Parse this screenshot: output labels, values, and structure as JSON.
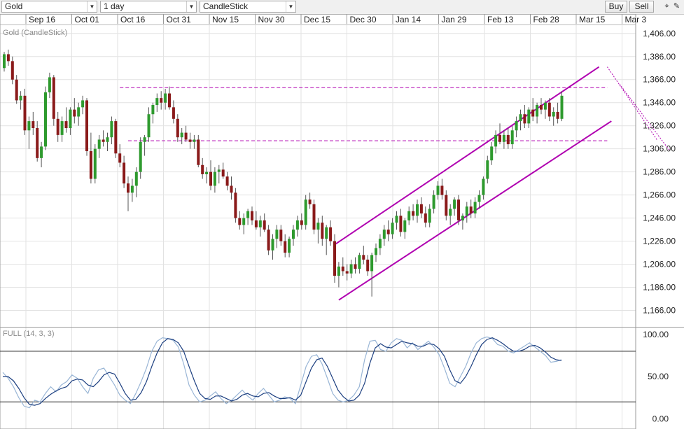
{
  "toolbar": {
    "symbol": "Gold",
    "interval": "1 day",
    "chart_type": "CandleStick",
    "buy_label": "Buy",
    "sell_label": "Sell"
  },
  "icons": [
    "crosshair-icon",
    "pencil-icon"
  ],
  "colors": {
    "bull": "#2e9a2e",
    "bear": "#8a1a1a",
    "channel": "#b000b0",
    "stoch_k": "#9ab6d6",
    "stoch_d": "#1c3f80",
    "grid": "#e2e2e2"
  },
  "chart_data": [
    {
      "type": "candlestick",
      "title": "Gold (CandleStick)",
      "x_tick_labels": [
        "Sep 16",
        "Oct 01",
        "Oct 16",
        "Oct 31",
        "Nov 15",
        "Nov 30",
        "Dec 15",
        "Dec 30",
        "Jan 14",
        "Jan 29",
        "Feb 13",
        "Feb 28",
        "Mar 15",
        "Mar 3"
      ],
      "y_tick_labels": [
        "1,406.00",
        "1,386.00",
        "1,366.00",
        "1,346.00",
        "1,326.00",
        "1,306.00",
        "1,286.00",
        "1,266.00",
        "1,246.00",
        "1,226.00",
        "1,206.00",
        "1,186.00",
        "1,166.00"
      ],
      "ylim": [
        1156,
        1418
      ],
      "horizontal_levels": [
        1359,
        1313
      ],
      "channel_lines": [
        {
          "style": "solid",
          "from": [
            32,
            1223
          ],
          "to": [
            144,
            1377
          ]
        },
        {
          "style": "solid",
          "from": [
            33,
            1175
          ],
          "to": [
            147,
            1330
          ]
        },
        {
          "style": "dotted",
          "from": [
            110,
            1314
          ],
          "to": [
            146,
            1377
          ]
        },
        {
          "style": "dotted",
          "from": [
            113,
            1305
          ],
          "to": [
            149,
            1362
          ]
        }
      ],
      "candles": [
        [
          0,
          1376,
          1390,
          1373,
          1388
        ],
        [
          1,
          1388,
          1392,
          1378,
          1382
        ],
        [
          2,
          1382,
          1386,
          1362,
          1366
        ],
        [
          3,
          1366,
          1370,
          1345,
          1348
        ],
        [
          4,
          1348,
          1356,
          1340,
          1352
        ],
        [
          5,
          1352,
          1358,
          1318,
          1322
        ],
        [
          6,
          1322,
          1334,
          1306,
          1330
        ],
        [
          7,
          1330,
          1338,
          1318,
          1324
        ],
        [
          8,
          1324,
          1330,
          1295,
          1298
        ],
        [
          9,
          1298,
          1312,
          1290,
          1308
        ],
        [
          10,
          1308,
          1360,
          1305,
          1355
        ],
        [
          11,
          1355,
          1372,
          1350,
          1368
        ],
        [
          12,
          1368,
          1370,
          1326,
          1332
        ],
        [
          13,
          1332,
          1338,
          1312,
          1318
        ],
        [
          14,
          1318,
          1334,
          1312,
          1330
        ],
        [
          15,
          1330,
          1342,
          1320,
          1324
        ],
        [
          16,
          1324,
          1342,
          1318,
          1340
        ],
        [
          17,
          1340,
          1350,
          1328,
          1334
        ],
        [
          18,
          1334,
          1346,
          1326,
          1342
        ],
        [
          19,
          1342,
          1352,
          1336,
          1348
        ],
        [
          20,
          1348,
          1350,
          1300,
          1304
        ],
        [
          21,
          1304,
          1320,
          1276,
          1280
        ],
        [
          22,
          1280,
          1310,
          1276,
          1306
        ],
        [
          23,
          1306,
          1318,
          1298,
          1314
        ],
        [
          24,
          1314,
          1322,
          1308,
          1312
        ],
        [
          25,
          1312,
          1320,
          1304,
          1316
        ],
        [
          26,
          1316,
          1334,
          1310,
          1330
        ],
        [
          27,
          1330,
          1332,
          1298,
          1302
        ],
        [
          28,
          1302,
          1310,
          1290,
          1294
        ],
        [
          29,
          1294,
          1300,
          1272,
          1276
        ],
        [
          30,
          1276,
          1282,
          1252,
          1268
        ],
        [
          31,
          1268,
          1280,
          1260,
          1274
        ],
        [
          32,
          1274,
          1290,
          1264,
          1286
        ],
        [
          33,
          1286,
          1316,
          1280,
          1312
        ],
        [
          34,
          1312,
          1318,
          1300,
          1316
        ],
        [
          35,
          1316,
          1342,
          1312,
          1336
        ],
        [
          36,
          1336,
          1346,
          1328,
          1344
        ],
        [
          37,
          1344,
          1354,
          1338,
          1350
        ],
        [
          38,
          1350,
          1356,
          1340,
          1346
        ],
        [
          39,
          1346,
          1358,
          1340,
          1354
        ],
        [
          40,
          1354,
          1360,
          1340,
          1342
        ],
        [
          41,
          1342,
          1348,
          1328,
          1332
        ],
        [
          42,
          1332,
          1336,
          1312,
          1316
        ],
        [
          43,
          1316,
          1324,
          1310,
          1320
        ],
        [
          44,
          1320,
          1326,
          1312,
          1314
        ],
        [
          45,
          1314,
          1320,
          1306,
          1312
        ],
        [
          46,
          1312,
          1318,
          1306,
          1314
        ],
        [
          47,
          1314,
          1318,
          1290,
          1292
        ],
        [
          48,
          1292,
          1298,
          1280,
          1284
        ],
        [
          49,
          1284,
          1290,
          1276,
          1286
        ],
        [
          50,
          1286,
          1296,
          1270,
          1274
        ],
        [
          51,
          1274,
          1290,
          1268,
          1286
        ],
        [
          52,
          1286,
          1292,
          1276,
          1288
        ],
        [
          53,
          1288,
          1294,
          1280,
          1282
        ],
        [
          54,
          1282,
          1286,
          1270,
          1274
        ],
        [
          55,
          1274,
          1282,
          1262,
          1268
        ],
        [
          56,
          1268,
          1272,
          1242,
          1246
        ],
        [
          57,
          1246,
          1252,
          1236,
          1240
        ],
        [
          58,
          1240,
          1250,
          1232,
          1246
        ],
        [
          59,
          1246,
          1254,
          1240,
          1252
        ],
        [
          60,
          1252,
          1256,
          1240,
          1244
        ],
        [
          61,
          1244,
          1252,
          1236,
          1238
        ],
        [
          62,
          1238,
          1248,
          1230,
          1244
        ],
        [
          63,
          1244,
          1250,
          1234,
          1236
        ],
        [
          64,
          1236,
          1240,
          1214,
          1218
        ],
        [
          65,
          1218,
          1232,
          1210,
          1228
        ],
        [
          66,
          1228,
          1240,
          1220,
          1236
        ],
        [
          67,
          1236,
          1240,
          1222,
          1226
        ],
        [
          68,
          1226,
          1232,
          1212,
          1216
        ],
        [
          69,
          1216,
          1230,
          1212,
          1228
        ],
        [
          70,
          1228,
          1240,
          1222,
          1236
        ],
        [
          71,
          1236,
          1248,
          1230,
          1244
        ],
        [
          72,
          1244,
          1250,
          1236,
          1240
        ],
        [
          73,
          1240,
          1266,
          1236,
          1262
        ],
        [
          74,
          1262,
          1268,
          1254,
          1258
        ],
        [
          75,
          1258,
          1262,
          1232,
          1236
        ],
        [
          76,
          1236,
          1246,
          1224,
          1242
        ],
        [
          77,
          1242,
          1248,
          1222,
          1228
        ],
        [
          78,
          1228,
          1240,
          1214,
          1238
        ],
        [
          79,
          1238,
          1244,
          1222,
          1226
        ],
        [
          80,
          1226,
          1232,
          1190,
          1196
        ],
        [
          81,
          1196,
          1208,
          1186,
          1204
        ],
        [
          82,
          1204,
          1212,
          1196,
          1200
        ],
        [
          83,
          1200,
          1206,
          1192,
          1198
        ],
        [
          84,
          1198,
          1210,
          1194,
          1206
        ],
        [
          85,
          1206,
          1212,
          1198,
          1202
        ],
        [
          86,
          1202,
          1216,
          1198,
          1214
        ],
        [
          87,
          1214,
          1222,
          1206,
          1210
        ],
        [
          88,
          1210,
          1214,
          1196,
          1200
        ],
        [
          89,
          1200,
          1216,
          1178,
          1214
        ],
        [
          90,
          1214,
          1224,
          1208,
          1220
        ],
        [
          91,
          1220,
          1232,
          1214,
          1228
        ],
        [
          92,
          1228,
          1240,
          1222,
          1236
        ],
        [
          93,
          1236,
          1244,
          1226,
          1232
        ],
        [
          94,
          1232,
          1246,
          1228,
          1242
        ],
        [
          95,
          1242,
          1252,
          1236,
          1248
        ],
        [
          96,
          1248,
          1254,
          1230,
          1234
        ],
        [
          97,
          1234,
          1246,
          1228,
          1244
        ],
        [
          98,
          1244,
          1256,
          1240,
          1252
        ],
        [
          99,
          1252,
          1258,
          1244,
          1248
        ],
        [
          100,
          1248,
          1262,
          1242,
          1258
        ],
        [
          101,
          1258,
          1264,
          1246,
          1250
        ],
        [
          102,
          1250,
          1256,
          1238,
          1242
        ],
        [
          103,
          1242,
          1258,
          1238,
          1254
        ],
        [
          104,
          1254,
          1270,
          1250,
          1266
        ],
        [
          105,
          1266,
          1278,
          1262,
          1274
        ],
        [
          106,
          1274,
          1280,
          1262,
          1266
        ],
        [
          107,
          1266,
          1270,
          1244,
          1248
        ],
        [
          108,
          1248,
          1258,
          1240,
          1254
        ],
        [
          109,
          1254,
          1264,
          1248,
          1262
        ],
        [
          110,
          1262,
          1266,
          1240,
          1244
        ],
        [
          111,
          1244,
          1250,
          1236,
          1248
        ],
        [
          112,
          1248,
          1260,
          1242,
          1256
        ],
        [
          113,
          1256,
          1262,
          1246,
          1250
        ],
        [
          114,
          1250,
          1264,
          1246,
          1260
        ],
        [
          115,
          1260,
          1270,
          1254,
          1266
        ],
        [
          116,
          1266,
          1282,
          1262,
          1280
        ],
        [
          117,
          1280,
          1300,
          1276,
          1296
        ],
        [
          118,
          1296,
          1312,
          1292,
          1308
        ],
        [
          119,
          1308,
          1322,
          1302,
          1318
        ],
        [
          120,
          1318,
          1328,
          1310,
          1312
        ],
        [
          121,
          1312,
          1322,
          1306,
          1318
        ],
        [
          122,
          1318,
          1324,
          1306,
          1310
        ],
        [
          123,
          1310,
          1326,
          1306,
          1322
        ],
        [
          124,
          1322,
          1334,
          1316,
          1330
        ],
        [
          125,
          1330,
          1340,
          1322,
          1336
        ],
        [
          126,
          1336,
          1344,
          1324,
          1328
        ],
        [
          127,
          1328,
          1342,
          1324,
          1340
        ],
        [
          128,
          1340,
          1350,
          1330,
          1334
        ],
        [
          129,
          1334,
          1346,
          1328,
          1344
        ],
        [
          130,
          1344,
          1350,
          1336,
          1340
        ],
        [
          131,
          1340,
          1348,
          1332,
          1346
        ],
        [
          132,
          1346,
          1350,
          1330,
          1334
        ],
        [
          133,
          1334,
          1342,
          1326,
          1338
        ],
        [
          134,
          1338,
          1346,
          1328,
          1332
        ],
        [
          135,
          1332,
          1356,
          1330,
          1352
        ]
      ]
    },
    {
      "type": "line",
      "title": "FULL (14, 3, 3)",
      "y_tick_labels": [
        "100.00",
        "50.00",
        "0.00"
      ],
      "ylim": [
        -8,
        104
      ],
      "reference_lines": [
        80,
        20
      ],
      "series": [
        {
          "name": "%K",
          "values": [
            55,
            48,
            38,
            25,
            15,
            13,
            22,
            20,
            30,
            38,
            32,
            40,
            44,
            52,
            48,
            38,
            30,
            48,
            58,
            60,
            50,
            40,
            28,
            22,
            18,
            30,
            44,
            60,
            80,
            92,
            96,
            95,
            93,
            85,
            65,
            40,
            28,
            20,
            22,
            27,
            32,
            24,
            18,
            22,
            28,
            34,
            27,
            22,
            30,
            36,
            28,
            20,
            22,
            26,
            24,
            18,
            40,
            62,
            74,
            76,
            65,
            48,
            30,
            22,
            20,
            22,
            28,
            38,
            70,
            92,
            93,
            82,
            80,
            90,
            95,
            93,
            84,
            90,
            82,
            87,
            92,
            85,
            76,
            60,
            42,
            38,
            50,
            62,
            78,
            90,
            95,
            97,
            95,
            88,
            86,
            80,
            78,
            82,
            86,
            90,
            85,
            80,
            75,
            67,
            68,
            70
          ]
        },
        {
          "name": "%D",
          "values": [
            50,
            50,
            45,
            36,
            25,
            17,
            16,
            18,
            24,
            29,
            33,
            36,
            38,
            45,
            47,
            46,
            40,
            38,
            44,
            52,
            55,
            53,
            42,
            30,
            22,
            23,
            31,
            44,
            62,
            78,
            90,
            95,
            94,
            90,
            80,
            62,
            45,
            30,
            24,
            23,
            27,
            27,
            24,
            21,
            23,
            28,
            30,
            27,
            26,
            30,
            31,
            27,
            24,
            24,
            25,
            22,
            28,
            44,
            60,
            70,
            72,
            62,
            48,
            34,
            26,
            21,
            22,
            28,
            42,
            66,
            84,
            89,
            85,
            84,
            88,
            92,
            90,
            89,
            86,
            86,
            89,
            88,
            83,
            74,
            58,
            45,
            42,
            50,
            62,
            76,
            88,
            94,
            96,
            93,
            89,
            84,
            80,
            80,
            82,
            86,
            87,
            84,
            79,
            73,
            70,
            69
          ]
        }
      ]
    }
  ]
}
